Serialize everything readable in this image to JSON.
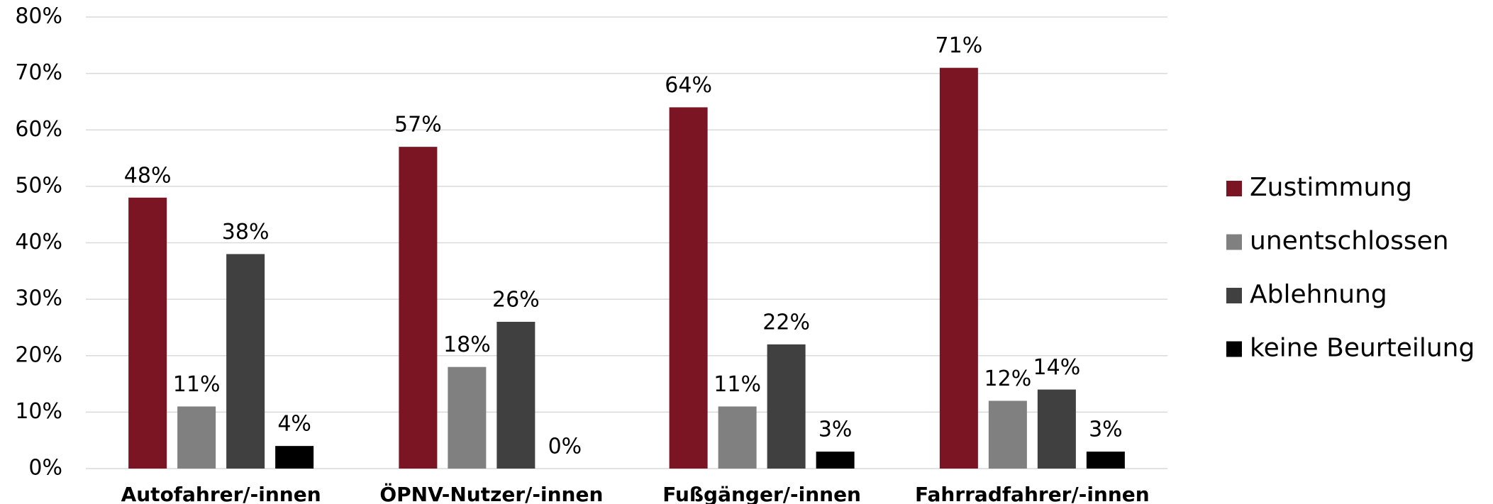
{
  "chart_data": {
    "type": "bar",
    "categories": [
      "Autofahrer/-innen",
      "ÖPNV-Nutzer/-innen",
      "Fußgänger/-innen",
      "Fahrradfahrer/-innen"
    ],
    "series": [
      {
        "name": "Zustimmung",
        "color": "#7b1523",
        "values": [
          48,
          57,
          64,
          71
        ],
        "value_labels": [
          "48%",
          "57%",
          "64%",
          "71%"
        ]
      },
      {
        "name": "unentschlossen",
        "color": "#808080",
        "values": [
          11,
          18,
          11,
          12
        ],
        "value_labels": [
          "11%",
          "18%",
          "11%",
          "12%"
        ]
      },
      {
        "name": "Ablehnung",
        "color": "#404040",
        "values": [
          38,
          26,
          22,
          14
        ],
        "value_labels": [
          "38%",
          "26%",
          "22%",
          "14%"
        ]
      },
      {
        "name": "keine Beurteilung",
        "color": "#000000",
        "values": [
          4,
          0,
          3,
          3
        ],
        "value_labels": [
          "4%",
          "0%",
          "3%",
          "3%"
        ]
      }
    ],
    "ylim": [
      0,
      80
    ],
    "yticks": [
      {
        "value": 0,
        "label": "0%"
      },
      {
        "value": 10,
        "label": "10%"
      },
      {
        "value": 20,
        "label": "20%"
      },
      {
        "value": 30,
        "label": "30%"
      },
      {
        "value": 40,
        "label": "40%"
      },
      {
        "value": 50,
        "label": "50%"
      },
      {
        "value": 60,
        "label": "60%"
      },
      {
        "value": 70,
        "label": "70%"
      },
      {
        "value": 80,
        "label": "80%"
      }
    ],
    "grid": true,
    "legend": "right"
  }
}
